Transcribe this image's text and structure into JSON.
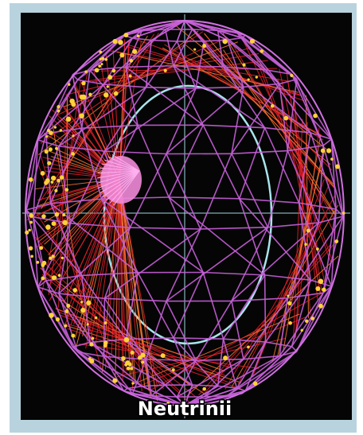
{
  "caption": "Neutrinii"
}
